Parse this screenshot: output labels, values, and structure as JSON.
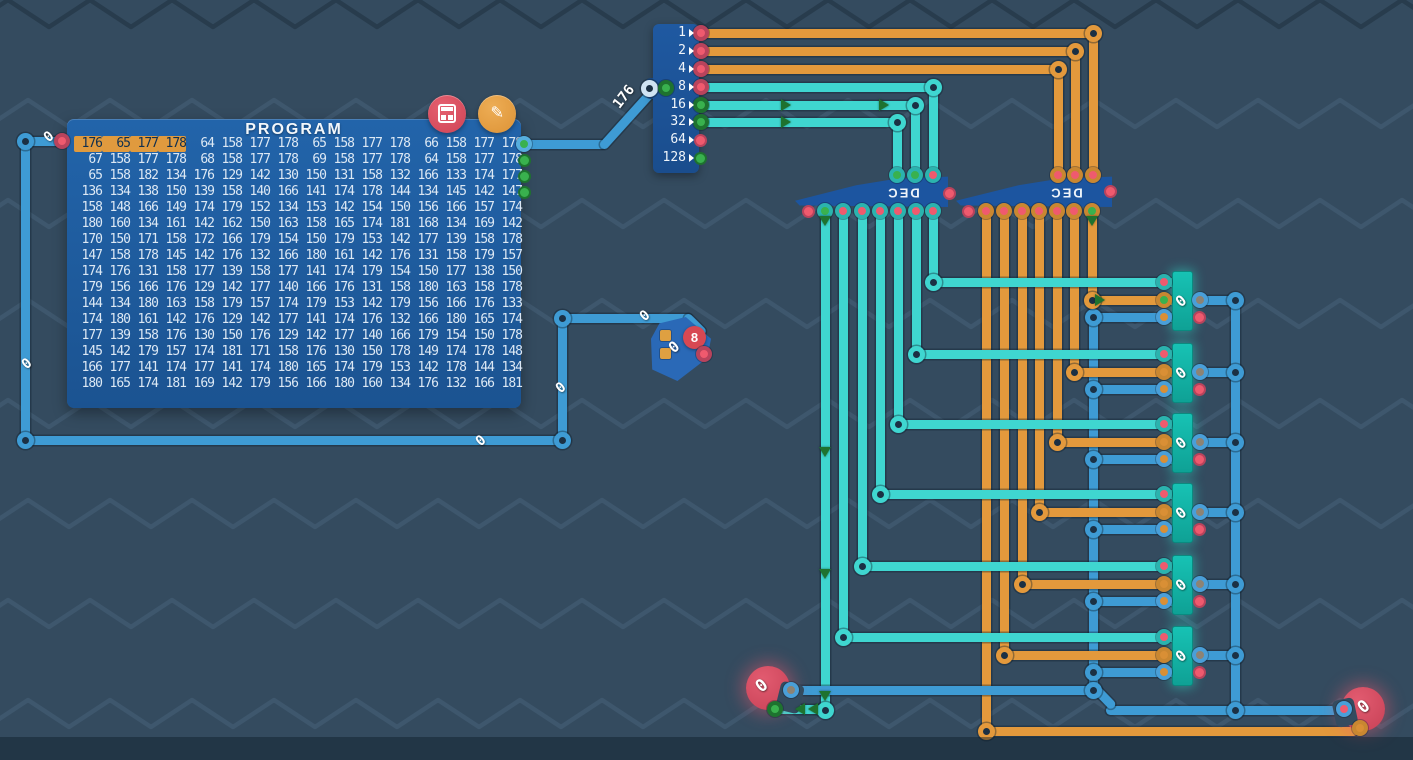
{
  "program": {
    "title": "PROGRAM",
    "rows": [
      [
        "176",
        "65",
        "177",
        "178",
        "64",
        "158",
        "177",
        "178",
        "65",
        "158",
        "177",
        "178",
        "66",
        "158",
        "177",
        "178"
      ],
      [
        "67",
        "158",
        "177",
        "178",
        "68",
        "158",
        "177",
        "178",
        "69",
        "158",
        "177",
        "178",
        "64",
        "158",
        "177",
        "178"
      ],
      [
        "65",
        "158",
        "182",
        "134",
        "176",
        "129",
        "142",
        "130",
        "150",
        "131",
        "158",
        "132",
        "166",
        "133",
        "174",
        "177"
      ],
      [
        "136",
        "134",
        "138",
        "150",
        "139",
        "158",
        "140",
        "166",
        "141",
        "174",
        "178",
        "144",
        "134",
        "145",
        "142",
        "147"
      ],
      [
        "158",
        "148",
        "166",
        "149",
        "174",
        "179",
        "152",
        "134",
        "153",
        "142",
        "154",
        "150",
        "156",
        "166",
        "157",
        "174"
      ],
      [
        "180",
        "160",
        "134",
        "161",
        "142",
        "162",
        "150",
        "163",
        "158",
        "165",
        "174",
        "181",
        "168",
        "134",
        "169",
        "142"
      ],
      [
        "170",
        "150",
        "171",
        "158",
        "172",
        "166",
        "179",
        "154",
        "150",
        "179",
        "153",
        "142",
        "177",
        "139",
        "158",
        "178"
      ],
      [
        "147",
        "158",
        "178",
        "145",
        "142",
        "176",
        "132",
        "166",
        "180",
        "161",
        "142",
        "176",
        "131",
        "158",
        "179",
        "157"
      ],
      [
        "174",
        "176",
        "131",
        "158",
        "177",
        "139",
        "158",
        "177",
        "141",
        "174",
        "179",
        "154",
        "150",
        "177",
        "138",
        "150"
      ],
      [
        "179",
        "156",
        "166",
        "176",
        "129",
        "142",
        "177",
        "140",
        "166",
        "176",
        "131",
        "158",
        "180",
        "163",
        "158",
        "178"
      ],
      [
        "144",
        "134",
        "180",
        "163",
        "158",
        "179",
        "157",
        "174",
        "179",
        "153",
        "142",
        "179",
        "156",
        "166",
        "176",
        "133"
      ],
      [
        "174",
        "180",
        "161",
        "142",
        "176",
        "129",
        "142",
        "177",
        "141",
        "174",
        "176",
        "132",
        "166",
        "180",
        "165",
        "174"
      ],
      [
        "177",
        "139",
        "158",
        "176",
        "130",
        "150",
        "176",
        "129",
        "142",
        "177",
        "140",
        "166",
        "179",
        "154",
        "150",
        "178"
      ],
      [
        "145",
        "142",
        "179",
        "157",
        "174",
        "181",
        "171",
        "158",
        "176",
        "130",
        "150",
        "178",
        "149",
        "174",
        "178",
        "148"
      ],
      [
        "166",
        "177",
        "141",
        "174",
        "177",
        "141",
        "174",
        "180",
        "165",
        "174",
        "179",
        "153",
        "142",
        "178",
        "144",
        "134"
      ],
      [
        "180",
        "165",
        "174",
        "181",
        "169",
        "142",
        "179",
        "156",
        "166",
        "180",
        "160",
        "134",
        "176",
        "132",
        "166",
        "181"
      ]
    ],
    "highlight": {
      "row": 0,
      "cells": 4
    }
  },
  "splitter": {
    "pin_labels": [
      "1",
      "2",
      "4",
      "8",
      "16",
      "32",
      "64",
      "128"
    ]
  },
  "decoders": {
    "label": "DEC"
  },
  "registers": {
    "values": [
      "0",
      "0",
      "0",
      "0",
      "0",
      "0"
    ]
  },
  "counter": {
    "value": "0",
    "badge": "8"
  },
  "io": {
    "left_value": "0",
    "right_value": "0"
  },
  "wire_labels": [
    "0",
    "0",
    "0",
    "0",
    "0",
    "176"
  ],
  "colors": {
    "wire_blue": "#3e9bd4",
    "wire_cyan": "#3fd6d0",
    "wire_orange": "#e3993c",
    "on_green": "#39b14e",
    "on_green_dark": "#1e722f",
    "off_red": "#ef5a6e",
    "off_red_dark": "#b8435c",
    "amber": "#d98f35",
    "olive": "#8d8374",
    "highlight_orange": "#e09a3e",
    "highlight_text": "#11304f",
    "button_red": "#df5163",
    "button_orange": "#e49b3d"
  }
}
